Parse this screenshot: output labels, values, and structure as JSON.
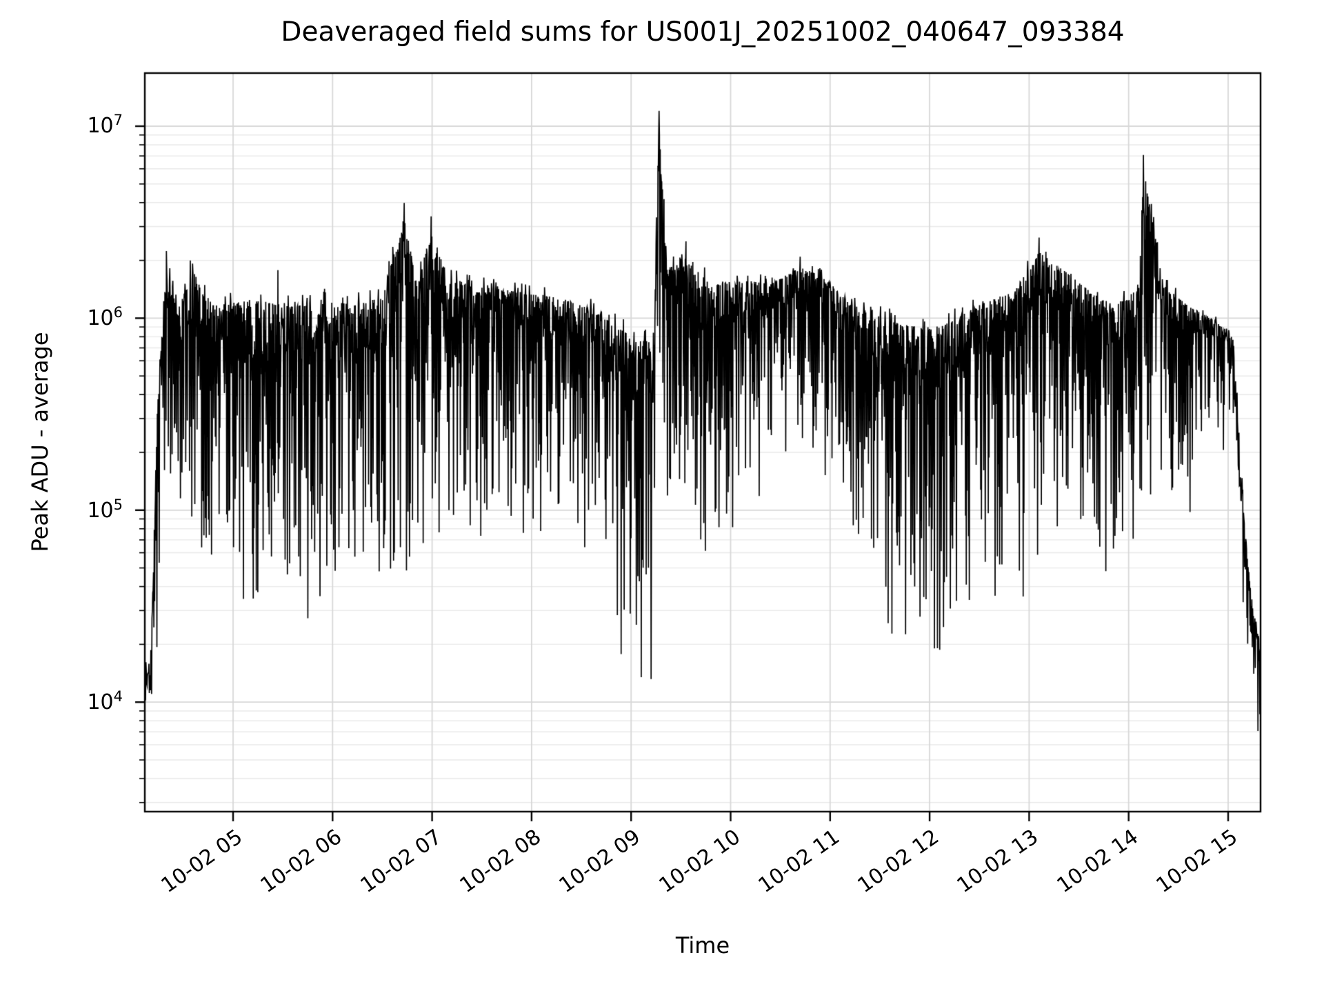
{
  "figure": {
    "background": "#ffffff",
    "text_color": "#000000"
  },
  "chart_data": {
    "type": "line",
    "title": "Deaveraged field sums for US001J_20251002_040647_093384",
    "xlabel": "Time",
    "ylabel": "Peak ADU - average",
    "yscale": "log",
    "ylim_log10": [
      3.43,
      7.277
    ],
    "xlim_hours": [
      4.113,
      15.326
    ],
    "x_unit": "hour of day on 2025-10-02",
    "x_ticks": [
      {
        "hour": 5,
        "label": "10-02 05"
      },
      {
        "hour": 6,
        "label": "10-02 06"
      },
      {
        "hour": 7,
        "label": "10-02 07"
      },
      {
        "hour": 8,
        "label": "10-02 08"
      },
      {
        "hour": 9,
        "label": "10-02 09"
      },
      {
        "hour": 10,
        "label": "10-02 10"
      },
      {
        "hour": 11,
        "label": "10-02 11"
      },
      {
        "hour": 12,
        "label": "10-02 12"
      },
      {
        "hour": 13,
        "label": "10-02 13"
      },
      {
        "hour": 14,
        "label": "10-02 14"
      },
      {
        "hour": 15,
        "label": "10-02 15"
      }
    ],
    "y_ticks": [
      {
        "value": 10000000,
        "base": "10",
        "exp": "7"
      },
      {
        "value": 1000000,
        "base": "10",
        "exp": "6"
      },
      {
        "value": 100000,
        "base": "10",
        "exp": "5"
      },
      {
        "value": 10000,
        "base": "10",
        "exp": "4"
      }
    ],
    "grid": {
      "show": true,
      "major_color": "#d7d7d7",
      "minor_color": "#e9e9e9",
      "vertical_on_hours": true
    },
    "line_color": "#000000",
    "spine_color": "#000000",
    "series_envelope": {
      "description": "Dense noisy single black series. Values in log10(ADU). Band between bot and top is filled by rapid oscillation; control points are [hour, log10_top, log10_bottom].",
      "points": [
        [
          4.113,
          4.25,
          3.95
        ],
        [
          4.18,
          4.35,
          4.0
        ],
        [
          4.24,
          5.6,
          4.35
        ],
        [
          4.33,
          6.33,
          5.1
        ],
        [
          4.45,
          6.1,
          4.9
        ],
        [
          4.6,
          6.3,
          4.8
        ],
        [
          4.8,
          6.12,
          4.72
        ],
        [
          5.0,
          6.14,
          4.68
        ],
        [
          5.3,
          6.15,
          4.62
        ],
        [
          5.6,
          6.12,
          4.6
        ],
        [
          5.9,
          6.16,
          4.6
        ],
        [
          6.2,
          6.13,
          4.65
        ],
        [
          6.5,
          6.17,
          4.7
        ],
        [
          6.72,
          6.6,
          4.8
        ],
        [
          6.85,
          6.22,
          4.8
        ],
        [
          6.99,
          6.53,
          4.85
        ],
        [
          7.15,
          6.27,
          4.95
        ],
        [
          7.4,
          6.22,
          5.0
        ],
        [
          7.7,
          6.2,
          4.95
        ],
        [
          8.0,
          6.17,
          5.05
        ],
        [
          8.3,
          6.15,
          5.0
        ],
        [
          8.6,
          6.1,
          4.8
        ],
        [
          8.85,
          6.02,
          4.55
        ],
        [
          9.05,
          5.95,
          4.3
        ],
        [
          9.22,
          5.95,
          4.15
        ],
        [
          9.28,
          7.08,
          5.3
        ],
        [
          9.36,
          6.3,
          5.15
        ],
        [
          9.55,
          6.4,
          5.0
        ],
        [
          9.8,
          6.22,
          4.95
        ],
        [
          10.1,
          6.25,
          5.0
        ],
        [
          10.4,
          6.22,
          5.15
        ],
        [
          10.7,
          6.3,
          5.45
        ],
        [
          10.95,
          6.25,
          5.3
        ],
        [
          11.2,
          6.12,
          4.95
        ],
        [
          11.5,
          6.07,
          4.6
        ],
        [
          11.8,
          6.02,
          4.5
        ],
        [
          12.05,
          6.02,
          4.3
        ],
        [
          12.3,
          6.07,
          4.55
        ],
        [
          12.6,
          6.15,
          4.8
        ],
        [
          12.85,
          6.2,
          4.6
        ],
        [
          13.1,
          6.4,
          5.0
        ],
        [
          13.35,
          6.3,
          5.0
        ],
        [
          13.6,
          6.2,
          4.8
        ],
        [
          13.85,
          6.12,
          4.8
        ],
        [
          14.1,
          6.2,
          4.95
        ],
        [
          14.15,
          6.85,
          5.1
        ],
        [
          14.35,
          6.22,
          5.0
        ],
        [
          14.6,
          6.1,
          5.15
        ],
        [
          14.85,
          6.02,
          5.35
        ],
        [
          15.0,
          5.95,
          5.5
        ],
        [
          15.06,
          5.9,
          5.55
        ],
        [
          15.12,
          5.35,
          5.05
        ],
        [
          15.18,
          4.85,
          4.4
        ],
        [
          15.24,
          4.55,
          4.0
        ],
        [
          15.326,
          4.3,
          3.85
        ]
      ],
      "notable_extremes": [
        [
          4.33,
          6.35
        ],
        [
          4.57,
          6.3
        ],
        [
          5.45,
          6.25
        ],
        [
          6.72,
          6.6
        ],
        [
          6.99,
          6.53
        ],
        [
          8.9,
          4.25
        ],
        [
          9.1,
          4.13
        ],
        [
          9.2,
          4.12
        ],
        [
          9.28,
          7.08
        ],
        [
          9.33,
          6.62
        ],
        [
          9.55,
          6.4
        ],
        [
          10.7,
          6.32
        ],
        [
          12.05,
          4.28
        ],
        [
          13.1,
          6.42
        ],
        [
          14.15,
          6.85
        ],
        [
          15.3,
          3.85
        ]
      ],
      "noise_seed": 1337
    }
  }
}
